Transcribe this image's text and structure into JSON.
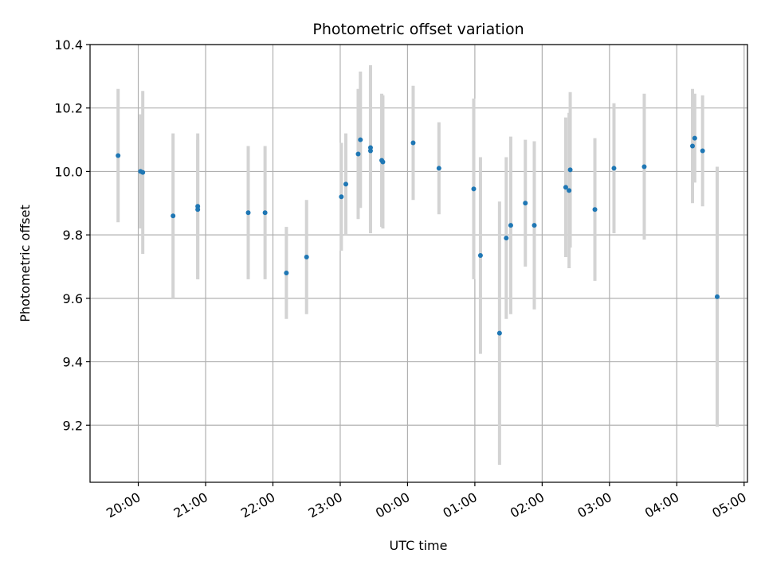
{
  "chart_data": {
    "type": "scatter",
    "title": "Photometric offset variation",
    "xlabel": "UTC time",
    "ylabel": "Photometric offset",
    "x_unit": "UTC hour",
    "xlim": [
      "19:17",
      "05:03"
    ],
    "ylim": [
      9.02,
      10.4
    ],
    "grid": true,
    "x_ticks": [
      "20:00",
      "21:00",
      "22:00",
      "23:00",
      "00:00",
      "01:00",
      "02:00",
      "03:00",
      "04:00",
      "05:00"
    ],
    "y_ticks": [
      "9.2",
      "9.4",
      "9.6",
      "9.8",
      "10.0",
      "10.2",
      "10.4"
    ],
    "colors": {
      "point": "#1f77b4",
      "errorbar": "#d3d3d3",
      "grid": "#b0b0b0"
    },
    "series": [
      {
        "points": [
          {
            "x": "19:42",
            "y": 10.05,
            "err": 0.21
          },
          {
            "x": "20:02",
            "y": 10.0,
            "err": 0.18
          },
          {
            "x": "20:04",
            "y": 9.997,
            "err": 0.257
          },
          {
            "x": "20:31",
            "y": 9.86,
            "err": 0.26
          },
          {
            "x": "20:53",
            "y": 9.89,
            "err": 0.23
          },
          {
            "x": "20:53",
            "y": 9.88,
            "err": 0.22
          },
          {
            "x": "21:38",
            "y": 9.87,
            "err": 0.21
          },
          {
            "x": "21:53",
            "y": 9.87,
            "err": 0.21
          },
          {
            "x": "22:12",
            "y": 9.68,
            "err": 0.145
          },
          {
            "x": "22:30",
            "y": 9.73,
            "err": 0.18
          },
          {
            "x": "23:01",
            "y": 9.92,
            "err": 0.17
          },
          {
            "x": "23:05",
            "y": 9.96,
            "err": 0.16
          },
          {
            "x": "23:16",
            "y": 10.055,
            "err": 0.205
          },
          {
            "x": "23:18",
            "y": 10.1,
            "err": 0.215
          },
          {
            "x": "23:27",
            "y": 10.075,
            "err": 0.26
          },
          {
            "x": "23:27",
            "y": 10.065,
            "err": 0.26
          },
          {
            "x": "23:37",
            "y": 10.035,
            "err": 0.21
          },
          {
            "x": "23:38",
            "y": 10.03,
            "err": 0.21
          },
          {
            "x": "00:05",
            "y": 10.09,
            "err": 0.18
          },
          {
            "x": "00:28",
            "y": 10.01,
            "err": 0.145
          },
          {
            "x": "00:59",
            "y": 9.945,
            "err": 0.285
          },
          {
            "x": "01:05",
            "y": 9.735,
            "err": 0.31
          },
          {
            "x": "01:22",
            "y": 9.49,
            "err": 0.415
          },
          {
            "x": "01:28",
            "y": 9.79,
            "err": 0.255
          },
          {
            "x": "01:32",
            "y": 9.83,
            "err": 0.28
          },
          {
            "x": "01:45",
            "y": 9.9,
            "err": 0.2
          },
          {
            "x": "01:53",
            "y": 9.83,
            "err": 0.265
          },
          {
            "x": "02:21",
            "y": 9.95,
            "err": 0.22
          },
          {
            "x": "02:24",
            "y": 9.94,
            "err": 0.245
          },
          {
            "x": "02:25",
            "y": 10.005,
            "err": 0.245
          },
          {
            "x": "02:47",
            "y": 9.88,
            "err": 0.225
          },
          {
            "x": "03:04",
            "y": 10.01,
            "err": 0.205
          },
          {
            "x": "03:31",
            "y": 10.015,
            "err": 0.23
          },
          {
            "x": "04:14",
            "y": 10.08,
            "err": 0.18
          },
          {
            "x": "04:16",
            "y": 10.105,
            "err": 0.14
          },
          {
            "x": "04:23",
            "y": 10.065,
            "err": 0.175
          },
          {
            "x": "04:36",
            "y": 9.605,
            "err": 0.41
          }
        ]
      }
    ]
  }
}
